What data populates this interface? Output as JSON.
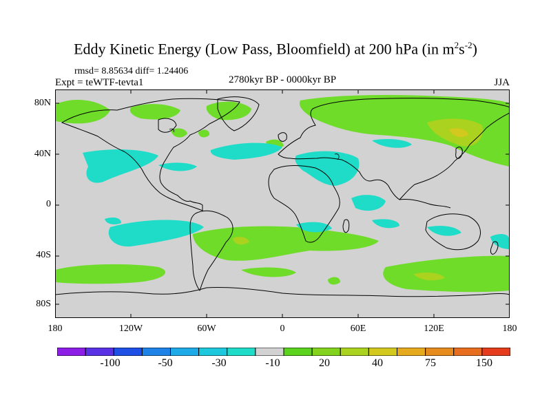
{
  "title": {
    "main": "Eddy Kinetic Energy (Low Pass, Bloomfield) at 200 hPa (in m",
    "sup1": "2",
    "mid": "s",
    "sup2": "-2",
    "end": ")"
  },
  "stats": "rmsd= 8.85634 diff= 1.24406",
  "expt": "Expt = teWTF-tevta1",
  "subtitle": "2780kyr BP - 0000kyr BP",
  "season": "JJA",
  "lat_labels": [
    "80N",
    "40N",
    "0",
    "40S",
    "80S"
  ],
  "lon_labels": [
    "180",
    "120W",
    "60W",
    "0",
    "60E",
    "120E",
    "180"
  ],
  "colorbar": {
    "colors": [
      "#8c1ee6",
      "#5a32e6",
      "#1e50e6",
      "#1e82e6",
      "#1eaae6",
      "#1ec8dc",
      "#1edcc8",
      "#d2d2d2",
      "#5ad21e",
      "#82d21e",
      "#aad21e",
      "#d2c81e",
      "#e6aa1e",
      "#e68c1e",
      "#e66e1e",
      "#e63c1e"
    ],
    "labels": [
      "-100",
      "-50",
      "-30",
      "-10",
      "20",
      "40",
      "75",
      "150"
    ]
  },
  "palette": {
    "background_field": "#d2d2d2",
    "positive_light": "#6edc28",
    "positive_mid": "#aad21e",
    "positive_high": "#d2c81e",
    "negative_light": "#1edcc8"
  }
}
